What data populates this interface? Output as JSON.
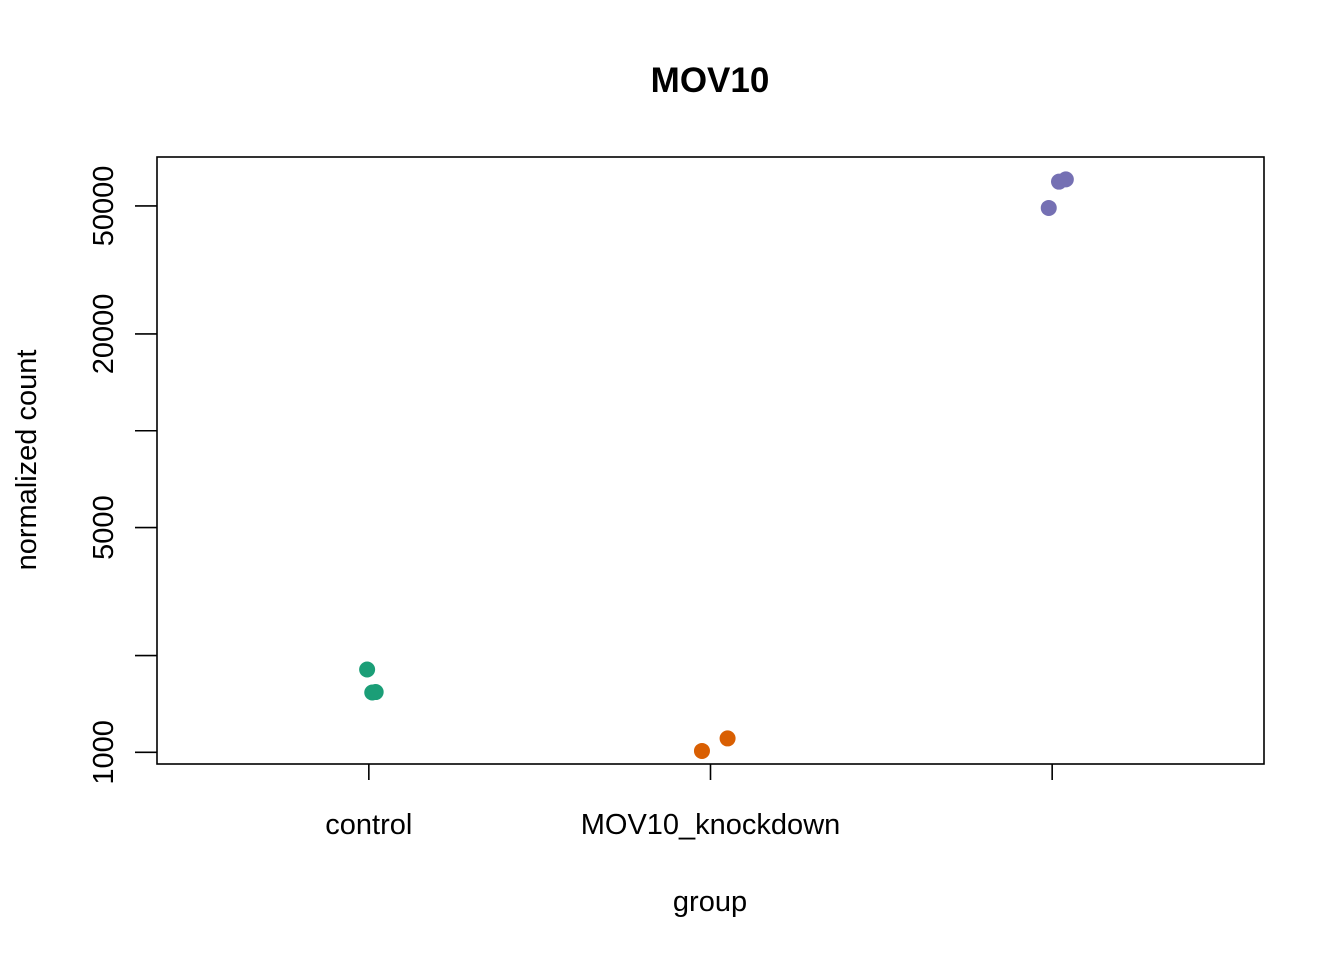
{
  "chart_data": {
    "type": "scatter",
    "title": "MOV10",
    "xlabel": "group",
    "ylabel": "normalized count",
    "y_scale": "log",
    "ylim": [
      920,
      71000
    ],
    "y_ticks": [
      {
        "value": 1000,
        "label": "1000"
      },
      {
        "value": 2000,
        "label": ""
      },
      {
        "value": 5000,
        "label": "5000"
      },
      {
        "value": 10000,
        "label": ""
      },
      {
        "value": 20000,
        "label": "20000"
      },
      {
        "value": 50000,
        "label": "50000"
      }
    ],
    "categories": [
      "control",
      "MOV10_knockdown",
      ""
    ],
    "series": [
      {
        "color": "#1B9E77",
        "values": [
          1810,
          1535,
          1540
        ]
      },
      {
        "color": "#D95F02",
        "values": [
          1010,
          1105
        ]
      },
      {
        "color": "#7570B3",
        "values": [
          49300,
          59500,
          60500
        ]
      }
    ],
    "grid": false,
    "legend": "none"
  }
}
